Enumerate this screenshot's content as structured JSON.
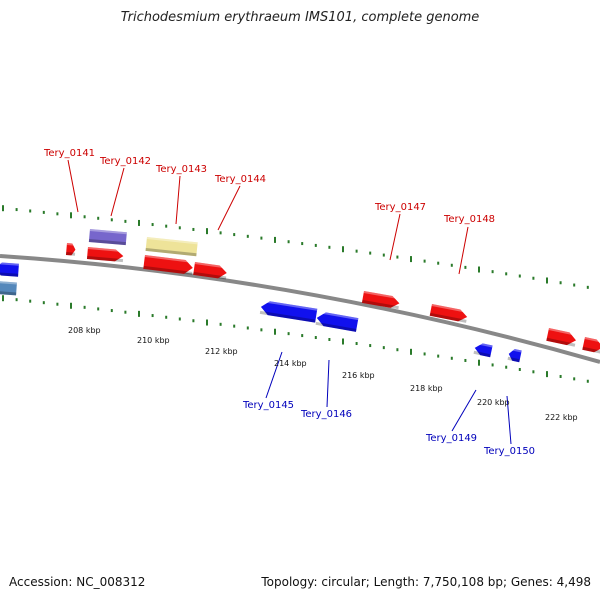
{
  "header": {
    "title": "Trichodesmium erythraeum IMS101, complete genome"
  },
  "footer": {
    "accession": "Accession: NC_008312",
    "topology": "Topology: circular; Length: 7,750,108 bp; Genes: 4,498"
  },
  "colors": {
    "forward_gene": "#ee1111",
    "reverse_gene": "#1111ee",
    "highlight_purple": "#7766cc",
    "highlight_yellow": "#eee399",
    "highlight_steelblue": "#5588bb",
    "backbone": "#888888",
    "ticks": "#2a7a2a",
    "forward_label": "#cc0000",
    "reverse_label": "#0000bb"
  },
  "scale": {
    "tick_labels": [
      "208 kbp",
      "210 kbp",
      "212 kbp",
      "214 kbp",
      "216 kbp",
      "218 kbp",
      "220 kbp",
      "222 kbp"
    ]
  },
  "genes": {
    "forward_labels": [
      "Tery_0141",
      "Tery_0142",
      "Tery_0143",
      "Tery_0144",
      "Tery_0147",
      "Tery_0148"
    ],
    "reverse_labels": [
      "Tery_0145",
      "Tery_0146",
      "Tery_0149",
      "Tery_0150"
    ]
  }
}
